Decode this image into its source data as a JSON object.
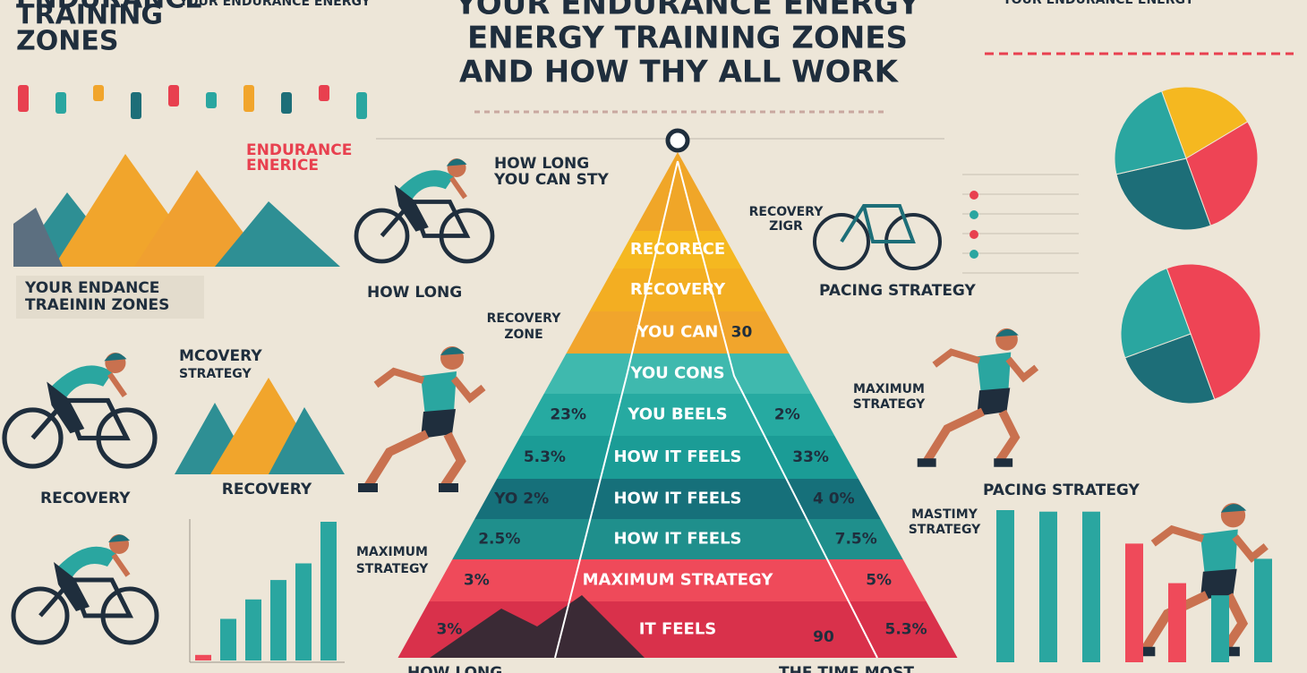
{
  "header": {
    "title_lines": [
      "YOUR ENDURANCE ENERGY",
      "ENERGY TRAINING ZONES",
      "AND HOW THY ALL WORK"
    ],
    "top_left_title": [
      "ENDURANCE",
      "TRAINING",
      "ZONES"
    ],
    "top_left_subtitle": "YOUR ENDURANCE ENERGY",
    "top_right_subtitle": "YOUR ENDURANCE ENERGY"
  },
  "labels": {
    "endurance": "ENDURANCE",
    "enerice": "ENERICE",
    "your_endance": "YOUR ENDANCE",
    "trainin_zones": "TRAEININ ZONES",
    "how_long_1": "HOW LONG",
    "you_can_sty": "YOU CAN STY",
    "how_long_2": "HOW LONG",
    "recovery_zone": [
      "RECOVERY",
      "ZONE"
    ],
    "mcovery_strategy": [
      "MCOVERY",
      "STRATEGY"
    ],
    "recovery_mid": "RECOVERY",
    "recovery_left": "RECOVERY",
    "maximum_strategy_left": [
      "MAXIMUM",
      "STRATEGY"
    ],
    "recovery_zigr": [
      "RECOVERY",
      "ZIGR"
    ],
    "pacing_strategy_1": "PACING STRATEGY",
    "maximum_strategy_right": [
      "MAXIMUM",
      "STRATEGY"
    ],
    "pacing_strategy_2": "PACING STRATEGY",
    "mastimy_strategy": [
      "MASTIMY",
      "STRATEGY"
    ],
    "ninety": "90",
    "bottom_how_long": "HOW LONG",
    "bottom_time_most": "THE TIME MOST"
  },
  "pyramid": {
    "layers": [
      {
        "label": "RECORECE",
        "color": "#f5b820"
      },
      {
        "label": "RECOVERY",
        "color": "#f3ae22"
      },
      {
        "label": "YOU CAN",
        "color": "#f1a52c",
        "right": "30"
      },
      {
        "label": "YOU CONS",
        "color": "#3fb9ae"
      },
      {
        "label": "YOU BEELS",
        "color": "#26aaa1",
        "left": "23%",
        "right": "2%"
      },
      {
        "label": "HOW IT FEELS",
        "color": "#1b9c96",
        "left": "5.3%",
        "right": "33%"
      },
      {
        "label": "HOW IT FEELS",
        "color": "#16707a",
        "left": "YO 2%",
        "right": "4 0%"
      },
      {
        "label": "HOW IT FEELS",
        "color": "#1f8f8c",
        "left": "2.5%",
        "right": "7.5%"
      },
      {
        "label": "MAXIMUM STRATEGY",
        "color": "#ef4a5a",
        "left": "3%",
        "right": "5%"
      },
      {
        "label": "IT FEELS",
        "color": "#d9314b",
        "left": "3%",
        "right": "5.3%"
      }
    ]
  },
  "left_bars": {
    "values": [
      4,
      30,
      44,
      58,
      70,
      100
    ],
    "colors": [
      "#ef4a5a",
      "#2aa6a0",
      "#2aa6a0",
      "#2aa6a0",
      "#2aa6a0",
      "#2aa6a0"
    ]
  },
  "right_bars": {
    "values": [
      100,
      99,
      99,
      78,
      52,
      44,
      68
    ],
    "colors": [
      "#2aa6a0",
      "#2aa6a0",
      "#2aa6a0",
      "#ef4a5a",
      "#ef4a5a",
      "#2aa6a0",
      "#2aa6a0"
    ]
  },
  "pie_top": {
    "values": [
      22,
      28,
      27,
      23
    ],
    "colors": [
      "#f5b820",
      "#ee4455",
      "#1d6e78",
      "#2aa6a0"
    ]
  },
  "pie_bottom": {
    "values": [
      50,
      25,
      25
    ],
    "colors": [
      "#ee4455",
      "#1d6e78",
      "#2aa6a0"
    ]
  }
}
